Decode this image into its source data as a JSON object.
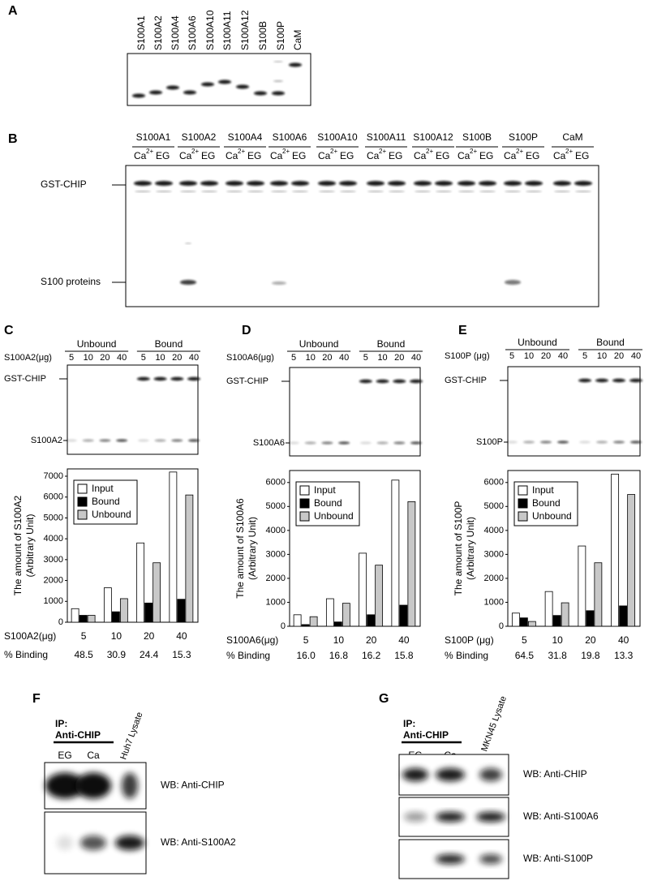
{
  "panel_a": {
    "letter": "A",
    "lanes": [
      "S100A1",
      "S100A2",
      "S100A4",
      "S100A6",
      "S100A10",
      "S100A11",
      "S100A12",
      "S100B",
      "S100P",
      "CaM"
    ]
  },
  "panel_b": {
    "letter": "B",
    "lanes": [
      "S100A1",
      "S100A2",
      "S100A4",
      "S100A6",
      "S100A10",
      "S100A11",
      "S100A12",
      "S100B",
      "S100P",
      "CaM"
    ],
    "ion": "Ca",
    "charge": "2+",
    "chelator": "EG",
    "bands": [
      "GST-CHIP",
      "S100 proteins"
    ]
  },
  "chart_data": [
    {
      "type": "bar",
      "letter": "C",
      "gel": {
        "groups": [
          "Unbound",
          "Bound"
        ],
        "lane_doses": [
          "5",
          "10",
          "20",
          "40"
        ],
        "bands": [
          "GST-CHIP",
          "S100A2"
        ]
      },
      "ylabel": [
        "The amount of S100A2",
        "(Arbitrary Unit)"
      ],
      "xlabel": "S100A2(μg)",
      "categories": [
        "5",
        "10",
        "20",
        "40"
      ],
      "series": [
        {
          "name": "Input",
          "color": "#ffffff",
          "values": [
            650,
            1650,
            3800,
            7200
          ]
        },
        {
          "name": "Bound",
          "color": "#000000",
          "values": [
            330,
            500,
            920,
            1100
          ]
        },
        {
          "name": "Unbound",
          "color": "#c8c8c8",
          "values": [
            330,
            1130,
            2850,
            6100
          ]
        }
      ],
      "ylim": [
        0,
        7350
      ],
      "yticks": [
        0,
        1000,
        2000,
        3000,
        4000,
        5000,
        6000,
        7000
      ],
      "legend": "upper left",
      "binding_label": "% Binding",
      "binding": [
        "48.5",
        "30.9",
        "24.4",
        "15.3"
      ]
    },
    {
      "type": "bar",
      "letter": "D",
      "gel": {
        "groups": [
          "Unbound",
          "Bound"
        ],
        "lane_doses": [
          "5",
          "10",
          "20",
          "40"
        ],
        "bands": [
          "GST-CHIP",
          "S100A6"
        ]
      },
      "ylabel": [
        "The amount of S100A6",
        "(Arbitrary Unit)"
      ],
      "xlabel": "S100A6(μg)",
      "categories": [
        "5",
        "10",
        "20",
        "40"
      ],
      "series": [
        {
          "name": "Input",
          "color": "#ffffff",
          "values": [
            480,
            1150,
            3050,
            6100
          ]
        },
        {
          "name": "Bound",
          "color": "#000000",
          "values": [
            70,
            180,
            480,
            880
          ]
        },
        {
          "name": "Unbound",
          "color": "#c8c8c8",
          "values": [
            400,
            960,
            2550,
            5200
          ]
        }
      ],
      "ylim": [
        0,
        6500
      ],
      "yticks": [
        0,
        1000,
        2000,
        3000,
        4000,
        5000,
        6000
      ],
      "legend": "upper left",
      "binding_label": "% Binding",
      "binding": [
        "16.0",
        "16.8",
        "16.2",
        "15.8"
      ]
    },
    {
      "type": "bar",
      "letter": "E",
      "gel": {
        "groups": [
          "Unbound",
          "Bound"
        ],
        "lane_doses": [
          "5",
          "10",
          "20",
          "40"
        ],
        "bands": [
          "GST-CHIP",
          "S100P"
        ]
      },
      "ylabel": [
        "The amount of S100P",
        "(Arbitrary Unit)"
      ],
      "xlabel": "S100P (μg)",
      "categories": [
        "5",
        "10",
        "20",
        "40"
      ],
      "series": [
        {
          "name": "Input",
          "color": "#ffffff",
          "values": [
            550,
            1450,
            3350,
            6350
          ]
        },
        {
          "name": "Bound",
          "color": "#000000",
          "values": [
            350,
            450,
            650,
            850
          ]
        },
        {
          "name": "Unbound",
          "color": "#c8c8c8",
          "values": [
            200,
            980,
            2650,
            5500
          ]
        }
      ],
      "ylim": [
        0,
        6500
      ],
      "yticks": [
        0,
        1000,
        2000,
        3000,
        4000,
        5000,
        6000
      ],
      "legend": "upper left",
      "binding_label": "% Binding",
      "binding": [
        "64.5",
        "31.8",
        "19.8",
        "13.3"
      ]
    }
  ],
  "panel_f": {
    "letter": "F",
    "ip": "IP:",
    "antibody": "Anti-CHIP",
    "lanes": [
      "EG",
      "Ca",
      "Huh7 Lysate"
    ],
    "blots": [
      "WB: Anti-CHIP",
      "WB: Anti-S100A2"
    ]
  },
  "panel_g": {
    "letter": "G",
    "ip": "IP:",
    "antibody": "Anti-CHIP",
    "lanes": [
      "EG",
      "Ca",
      "MKN45 Lysate"
    ],
    "blots": [
      "WB: Anti-CHIP",
      "WB: Anti-S100A6",
      "WB: Anti-S100P"
    ]
  }
}
